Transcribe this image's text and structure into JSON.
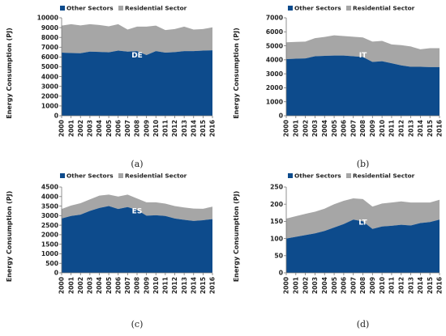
{
  "legend": {
    "other_label": "Other Sectors",
    "residential_label": "Residential Sector"
  },
  "colors": {
    "other": "#0d4b8c",
    "residential": "#a6a6a6"
  },
  "chart_data": [
    {
      "type": "area",
      "stacked": true,
      "panel": "(a)",
      "label": "DE",
      "ylabel": "Energy Consumption (PJ)",
      "x": [
        "2000",
        "2001",
        "2002",
        "2003",
        "2004",
        "2005",
        "2006",
        "2007",
        "2008",
        "2009",
        "2010",
        "2011",
        "2012",
        "2013",
        "2014",
        "2015",
        "2016"
      ],
      "ylim": [
        0,
        10000
      ],
      "yticks": [
        0,
        1000,
        2000,
        3000,
        4000,
        5000,
        6000,
        7000,
        8000,
        9000,
        10000
      ],
      "series": [
        {
          "name": "Other Sectors",
          "values": [
            6450,
            6400,
            6380,
            6550,
            6520,
            6480,
            6650,
            6550,
            6600,
            6200,
            6600,
            6450,
            6500,
            6600,
            6600,
            6650,
            6680
          ]
        },
        {
          "name": "Residential Sector",
          "values": [
            2750,
            2950,
            2850,
            2800,
            2750,
            2650,
            2700,
            2250,
            2500,
            2900,
            2600,
            2300,
            2350,
            2500,
            2200,
            2200,
            2350
          ]
        }
      ]
    },
    {
      "type": "area",
      "stacked": true,
      "panel": "(b)",
      "label": "IT",
      "ylabel": "Energy Consumption (PJ)",
      "x": [
        "2000",
        "2001",
        "2002",
        "2003",
        "2004",
        "2005",
        "2006",
        "2007",
        "2008",
        "2009",
        "2010",
        "2011",
        "2012",
        "2013",
        "2014",
        "2015",
        "2016"
      ],
      "ylim": [
        0,
        7000
      ],
      "yticks": [
        0,
        1000,
        2000,
        3000,
        4000,
        5000,
        6000,
        7000
      ],
      "series": [
        {
          "name": "Other Sectors",
          "values": [
            4050,
            4080,
            4100,
            4250,
            4280,
            4300,
            4300,
            4250,
            4200,
            3850,
            3900,
            3750,
            3600,
            3500,
            3500,
            3480,
            3480
          ]
        },
        {
          "name": "Residential Sector",
          "values": [
            1200,
            1200,
            1200,
            1300,
            1350,
            1450,
            1400,
            1400,
            1400,
            1450,
            1450,
            1350,
            1450,
            1450,
            1250,
            1350,
            1350
          ]
        }
      ]
    },
    {
      "type": "area",
      "stacked": true,
      "panel": "(c)",
      "label": "ES",
      "ylabel": "Energy Consumption (PJ)",
      "x": [
        "2000",
        "2001",
        "2002",
        "2003",
        "2004",
        "2005",
        "2006",
        "2007",
        "2008",
        "2009",
        "2010",
        "2011",
        "2012",
        "2013",
        "2014",
        "2015",
        "2016"
      ],
      "ylim": [
        0,
        4500
      ],
      "yticks": [
        0,
        500,
        1000,
        1500,
        2000,
        2500,
        3000,
        3500,
        4000,
        4500
      ],
      "series": [
        {
          "name": "Other Sectors",
          "values": [
            2850,
            2980,
            3050,
            3250,
            3400,
            3500,
            3350,
            3450,
            3300,
            3000,
            3020,
            2980,
            2850,
            2780,
            2720,
            2760,
            2820
          ]
        },
        {
          "name": "Residential Sector",
          "values": [
            500,
            550,
            600,
            600,
            650,
            600,
            650,
            650,
            600,
            700,
            680,
            650,
            650,
            650,
            650,
            600,
            650
          ]
        }
      ]
    },
    {
      "type": "area",
      "stacked": true,
      "panel": "(d)",
      "label": "LT",
      "ylabel": "Energy Consumption (PJ)",
      "x": [
        "2000",
        "2001",
        "2002",
        "2003",
        "2004",
        "2005",
        "2006",
        "2007",
        "2008",
        "2009",
        "2010",
        "2011",
        "2012",
        "2013",
        "2014",
        "2015",
        "2016"
      ],
      "ylim": [
        0,
        250
      ],
      "yticks": [
        0,
        50,
        100,
        150,
        200,
        250
      ],
      "series": [
        {
          "name": "Other Sectors",
          "values": [
            100,
            105,
            110,
            115,
            122,
            132,
            142,
            155,
            150,
            128,
            135,
            137,
            140,
            138,
            145,
            148,
            155
          ]
        },
        {
          "name": "Residential Sector",
          "values": [
            58,
            60,
            62,
            63,
            65,
            68,
            68,
            62,
            65,
            65,
            67,
            68,
            68,
            67,
            60,
            57,
            58
          ]
        }
      ]
    }
  ]
}
